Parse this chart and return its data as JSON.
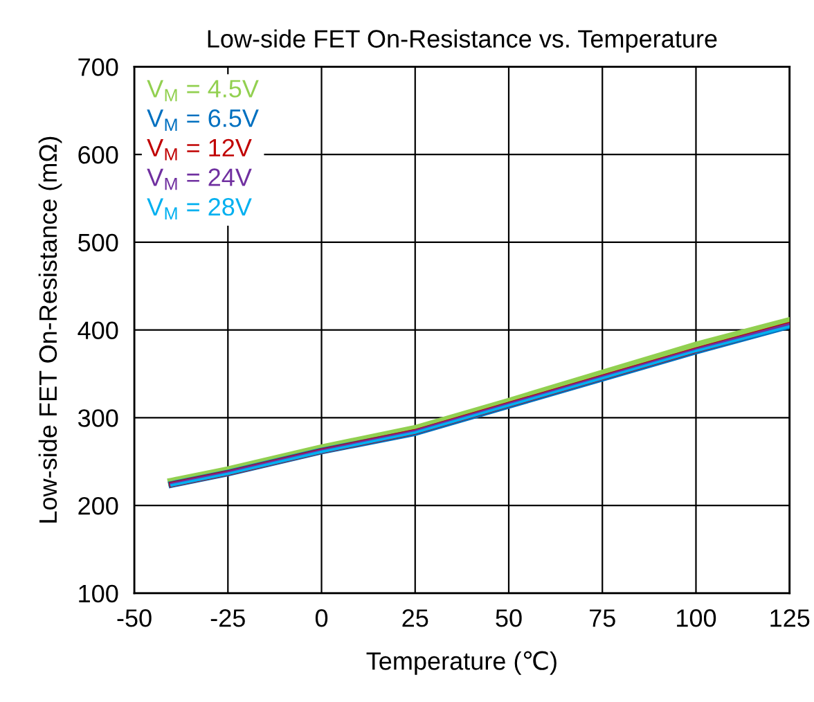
{
  "chart_data": {
    "type": "line",
    "title": "Low-side FET On-Resistance vs. Temperature",
    "xlabel": "Temperature (℃)",
    "ylabel": "Low-side FET On-Resistance (mΩ)",
    "x": [
      -40,
      -25,
      0,
      25,
      50,
      75,
      100,
      125
    ],
    "series": [
      {
        "name": "V$_{M}$ = 4.5V",
        "color": "#92d050",
        "values": [
          227,
          240,
          265,
          287,
          318,
          350,
          382,
          410
        ]
      },
      {
        "name": "V$_{M}$ = 6.5V",
        "color": "#0070c0",
        "values": [
          224,
          237,
          262,
          283,
          314,
          345,
          376,
          405
        ]
      },
      {
        "name": "V$_{M}$ = 12V",
        "color": "#c00000",
        "values": [
          224,
          237,
          262,
          284,
          315,
          346,
          377,
          406
        ]
      },
      {
        "name": "V$_{M}$ = 24V",
        "color": "#7030a0",
        "values": [
          224,
          237,
          262,
          284,
          315,
          346,
          377,
          406
        ]
      },
      {
        "name": "V$_{M}$ = 28V",
        "color": "#00b0f0",
        "values": [
          223,
          236,
          261,
          283,
          314,
          345,
          376,
          404
        ]
      }
    ],
    "xlim": [
      -50,
      125
    ],
    "xticks": [
      -50,
      -25,
      0,
      25,
      50,
      75,
      100,
      125
    ],
    "ylim": [
      100,
      700
    ],
    "yticks": [
      100,
      200,
      300,
      400,
      500,
      600,
      700
    ],
    "grid": true,
    "legend": "top left",
    "marker": "none",
    "line_style": "solid"
  }
}
